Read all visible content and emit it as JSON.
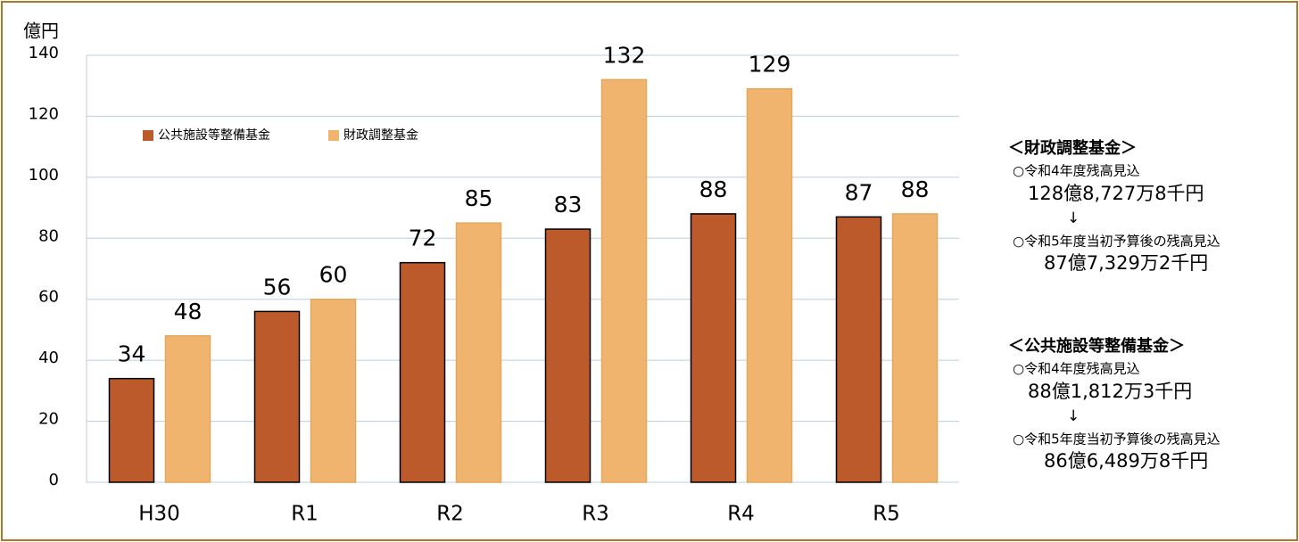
{
  "chart_data": {
    "type": "bar",
    "y_label": "億円",
    "categories": [
      "H30",
      "R1",
      "R2",
      "R3",
      "R4",
      "R5"
    ],
    "series": [
      {
        "name": "公共施設等整備基金",
        "color": "#bd5a2b",
        "values": [
          34,
          56,
          72,
          83,
          88,
          87
        ]
      },
      {
        "name": "財政調整基金",
        "color": "#f0b46e",
        "values": [
          48,
          60,
          85,
          132,
          129,
          88
        ]
      }
    ],
    "ylim": [
      0,
      140
    ],
    "yticks": [
      0,
      20,
      40,
      60,
      80,
      100,
      120,
      140
    ],
    "grid": true,
    "annotations": [
      {
        "heading": "＜財政調整基金＞",
        "lines": [
          "○令和4年度残高見込",
          "128億8,727万8千円",
          "↓",
          "○令和5年度当初予算後の残高見込",
          "87億7,329万2千円"
        ]
      },
      {
        "heading": "＜公共施設等整備基金＞",
        "lines": [
          "○令和4年度残高見込",
          "88億1,812万3千円",
          "↓",
          "○令和5年度当初予算後の残高見込",
          "86億6,489万8千円"
        ]
      }
    ]
  }
}
